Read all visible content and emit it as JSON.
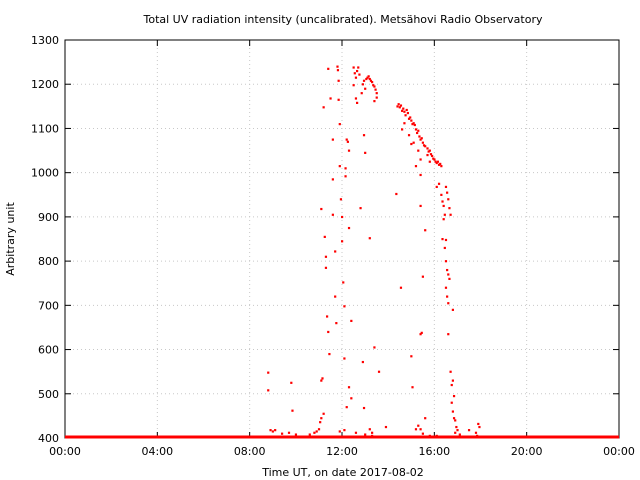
{
  "chart_data": {
    "type": "scatter",
    "title": "Total UV radiation intensity (uncalibrated). Metsähovi Radio Observatory",
    "xlabel": "Time UT, on date 2017-08-02",
    "ylabel": "Arbitrary unit",
    "xlim": [
      0,
      24
    ],
    "ylim": [
      400,
      1300
    ],
    "xticks": [
      0,
      4,
      8,
      12,
      16,
      20,
      24
    ],
    "xtick_labels": [
      "00:00",
      "04:00",
      "08:00",
      "12:00",
      "16:00",
      "20:00",
      "00:00"
    ],
    "yticks": [
      400,
      500,
      600,
      700,
      800,
      900,
      1000,
      1100,
      1200,
      1300
    ],
    "ytick_labels": [
      "400",
      "500",
      "600",
      "700",
      "800",
      "900",
      "1000",
      "1100",
      "1200",
      "1300"
    ],
    "grid": true,
    "colors": {
      "series": "#ff0000",
      "grid": "#c8c8c8",
      "axis": "#000000"
    },
    "series": [
      {
        "baseline_segments": [
          [
            0.0,
            24.0,
            400
          ]
        ],
        "points": [
          [
            8.8,
            548
          ],
          [
            8.8,
            508
          ],
          [
            8.9,
            418
          ],
          [
            9.0,
            415
          ],
          [
            9.1,
            418
          ],
          [
            9.4,
            410
          ],
          [
            9.7,
            412
          ],
          [
            9.8,
            525
          ],
          [
            9.85,
            462
          ],
          [
            10.0,
            408
          ],
          [
            10.6,
            408
          ],
          [
            10.8,
            412
          ],
          [
            10.9,
            415
          ],
          [
            11.0,
            420
          ],
          [
            11.05,
            436
          ],
          [
            11.1,
            445
          ],
          [
            11.1,
            530
          ],
          [
            11.15,
            535
          ],
          [
            11.2,
            455
          ],
          [
            11.1,
            918
          ],
          [
            11.2,
            1148
          ],
          [
            11.25,
            855
          ],
          [
            11.3,
            785
          ],
          [
            11.3,
            810
          ],
          [
            11.35,
            675
          ],
          [
            11.4,
            640
          ],
          [
            11.45,
            590
          ],
          [
            11.5,
            1168
          ],
          [
            11.4,
            1235
          ],
          [
            11.6,
            985
          ],
          [
            11.6,
            905
          ],
          [
            11.7,
            822
          ],
          [
            11.7,
            720
          ],
          [
            11.75,
            660
          ],
          [
            11.6,
            1075
          ],
          [
            11.8,
            1240
          ],
          [
            11.82,
            1232
          ],
          [
            11.85,
            1208
          ],
          [
            11.85,
            1165
          ],
          [
            11.9,
            1110
          ],
          [
            11.9,
            1015
          ],
          [
            11.95,
            940
          ],
          [
            12.0,
            900
          ],
          [
            12.0,
            845
          ],
          [
            12.05,
            752
          ],
          [
            12.1,
            698
          ],
          [
            12.1,
            580
          ],
          [
            12.15,
            1010
          ],
          [
            12.15,
            992
          ],
          [
            12.2,
            1075
          ],
          [
            12.25,
            1070
          ],
          [
            12.3,
            1050
          ],
          [
            12.3,
            875
          ],
          [
            12.4,
            665
          ],
          [
            12.3,
            515
          ],
          [
            12.4,
            490
          ],
          [
            12.5,
            1238
          ],
          [
            12.55,
            1225
          ],
          [
            12.6,
            1215
          ],
          [
            12.65,
            1230
          ],
          [
            12.7,
            1238
          ],
          [
            12.75,
            1222
          ],
          [
            12.6,
            1168
          ],
          [
            12.5,
            1198
          ],
          [
            12.65,
            1158
          ],
          [
            12.85,
            1180
          ],
          [
            12.9,
            1200
          ],
          [
            12.95,
            1208
          ],
          [
            13.0,
            1190
          ],
          [
            13.05,
            1212
          ],
          [
            13.1,
            1215
          ],
          [
            13.15,
            1218
          ],
          [
            13.2,
            1212
          ],
          [
            13.25,
            1208
          ],
          [
            13.3,
            1205
          ],
          [
            13.35,
            1198
          ],
          [
            13.4,
            1195
          ],
          [
            13.45,
            1188
          ],
          [
            13.5,
            1180
          ],
          [
            13.5,
            1170
          ],
          [
            13.4,
            1162
          ],
          [
            12.8,
            920
          ],
          [
            13.0,
            1045
          ],
          [
            12.95,
            1085
          ],
          [
            13.2,
            852
          ],
          [
            12.9,
            572
          ],
          [
            12.95,
            468
          ],
          [
            13.2,
            420
          ],
          [
            13.3,
            412
          ],
          [
            13.4,
            605
          ],
          [
            13.6,
            550
          ],
          [
            12.2,
            470
          ],
          [
            12.1,
            418
          ],
          [
            11.9,
            415
          ],
          [
            12.6,
            412
          ],
          [
            13.0,
            408
          ],
          [
            13.3,
            405
          ],
          [
            13.9,
            425
          ],
          [
            14.35,
            952
          ],
          [
            14.4,
            1150
          ],
          [
            14.45,
            1155
          ],
          [
            14.5,
            1148
          ],
          [
            14.55,
            1152
          ],
          [
            14.6,
            1140
          ],
          [
            14.65,
            1145
          ],
          [
            14.7,
            1138
          ],
          [
            14.75,
            1130
          ],
          [
            14.8,
            1142
          ],
          [
            14.85,
            1135
          ],
          [
            14.9,
            1122
          ],
          [
            14.95,
            1125
          ],
          [
            15.0,
            1118
          ],
          [
            15.05,
            1110
          ],
          [
            15.1,
            1112
          ],
          [
            15.15,
            1108
          ],
          [
            15.2,
            1098
          ],
          [
            15.25,
            1090
          ],
          [
            15.3,
            1095
          ],
          [
            15.35,
            1082
          ],
          [
            15.4,
            1075
          ],
          [
            15.45,
            1078
          ],
          [
            15.5,
            1068
          ],
          [
            15.55,
            1062
          ],
          [
            15.6,
            1060
          ],
          [
            15.7,
            1055
          ],
          [
            15.75,
            1048
          ],
          [
            15.8,
            1050
          ],
          [
            15.85,
            1042
          ],
          [
            15.9,
            1038
          ],
          [
            15.95,
            1032
          ],
          [
            16.0,
            1030
          ],
          [
            16.05,
            1025
          ],
          [
            16.1,
            1022
          ],
          [
            16.15,
            1025
          ],
          [
            16.2,
            1018
          ],
          [
            16.25,
            1020
          ],
          [
            16.3,
            1015
          ],
          [
            14.6,
            1098
          ],
          [
            14.7,
            1112
          ],
          [
            14.9,
            1085
          ],
          [
            15.0,
            1065
          ],
          [
            15.1,
            1068
          ],
          [
            15.3,
            1050
          ],
          [
            15.4,
            1030
          ],
          [
            15.2,
            1015
          ],
          [
            15.4,
            995
          ],
          [
            15.7,
            1040
          ],
          [
            15.8,
            1025
          ],
          [
            14.55,
            740
          ],
          [
            15.0,
            585
          ],
          [
            15.05,
            515
          ],
          [
            15.4,
            925
          ],
          [
            15.6,
            870
          ],
          [
            15.5,
            765
          ],
          [
            15.45,
            638
          ],
          [
            15.4,
            635
          ],
          [
            15.3,
            428
          ],
          [
            15.4,
            420
          ],
          [
            15.6,
            445
          ],
          [
            15.5,
            410
          ],
          [
            15.8,
            405
          ],
          [
            16.1,
            405
          ],
          [
            15.2,
            420
          ],
          [
            16.1,
            968
          ],
          [
            16.2,
            975
          ],
          [
            16.3,
            950
          ],
          [
            16.35,
            935
          ],
          [
            16.4,
            925
          ],
          [
            16.45,
            905
          ],
          [
            16.4,
            895
          ],
          [
            16.5,
            968
          ],
          [
            16.55,
            955
          ],
          [
            16.6,
            940
          ],
          [
            16.65,
            920
          ],
          [
            16.7,
            905
          ],
          [
            16.35,
            850
          ],
          [
            16.5,
            848
          ],
          [
            16.45,
            830
          ],
          [
            16.5,
            800
          ],
          [
            16.55,
            780
          ],
          [
            16.6,
            770
          ],
          [
            16.65,
            760
          ],
          [
            16.5,
            740
          ],
          [
            16.55,
            720
          ],
          [
            16.6,
            705
          ],
          [
            16.8,
            690
          ],
          [
            16.6,
            635
          ],
          [
            16.7,
            550
          ],
          [
            16.75,
            520
          ],
          [
            16.8,
            530
          ],
          [
            16.85,
            495
          ],
          [
            16.75,
            480
          ],
          [
            16.8,
            460
          ],
          [
            16.85,
            445
          ],
          [
            16.9,
            440
          ],
          [
            16.95,
            425
          ],
          [
            17.0,
            418
          ],
          [
            17.1,
            408
          ],
          [
            16.9,
            412
          ],
          [
            17.0,
            402
          ],
          [
            17.5,
            418
          ],
          [
            17.8,
            412
          ],
          [
            17.9,
            432
          ],
          [
            17.95,
            425
          ],
          [
            17.85,
            405
          ],
          [
            18.1,
            402
          ]
        ]
      }
    ]
  }
}
